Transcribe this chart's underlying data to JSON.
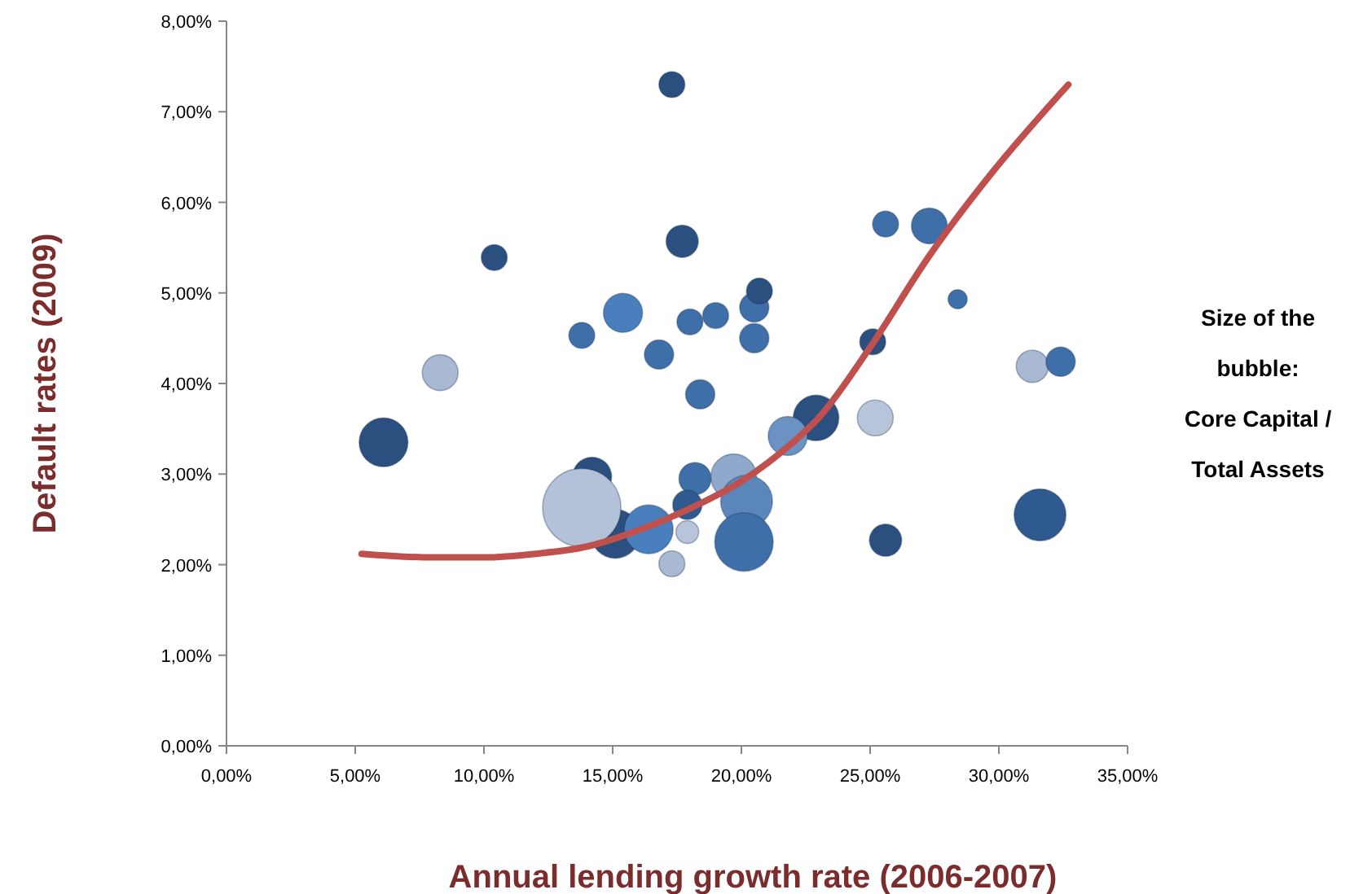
{
  "chart_data": {
    "type": "bubble",
    "xlabel": "Annual lending growth rate (2006-2007)",
    "ylabel": "Default rates (2009)",
    "annotations": [
      "Size of the\nbubble:\nCore Capital /\nTotal Assets"
    ],
    "xlim": [
      0,
      35
    ],
    "xticks": [
      {
        "value": 0,
        "label": "0,00%"
      },
      {
        "value": 5,
        "label": "5,00%"
      },
      {
        "value": 10,
        "label": "10,00%"
      },
      {
        "value": 15,
        "label": "15,00%"
      },
      {
        "value": 20,
        "label": "20,00%"
      },
      {
        "value": 25,
        "label": "25,00%"
      },
      {
        "value": 30,
        "label": "30,00%"
      },
      {
        "value": 35,
        "label": "35,00%"
      }
    ],
    "ylim": [
      0,
      8
    ],
    "yticks": [
      {
        "value": 0,
        "label": "0,00%"
      },
      {
        "value": 1,
        "label": "1,00%"
      },
      {
        "value": 2,
        "label": "2,00%"
      },
      {
        "value": 3,
        "label": "3,00%"
      },
      {
        "value": 4,
        "label": "4,00%"
      },
      {
        "value": 5,
        "label": "5,00%"
      },
      {
        "value": 6,
        "label": "6,00%"
      },
      {
        "value": 7,
        "label": "7,00%"
      },
      {
        "value": 8,
        "label": "8,00%"
      }
    ],
    "grid": false,
    "series": [
      {
        "x": [
          17.3,
          10.4,
          17.7,
          8.3,
          13.8,
          15.4,
          16.8,
          18.0,
          19.0,
          20.5,
          20.7,
          20.5,
          18.4,
          6.1,
          25.6,
          27.3,
          28.4,
          25.1,
          31.3,
          32.4,
          25.2,
          22.9,
          21.8,
          25.6,
          31.6,
          14.2,
          15.1,
          13.8,
          16.4,
          18.2,
          17.9,
          17.9,
          17.3,
          19.7,
          20.2,
          20.1
        ],
        "values": [
          7.3,
          5.39,
          5.57,
          4.12,
          4.53,
          4.78,
          4.32,
          4.68,
          4.75,
          4.84,
          5.02,
          4.5,
          3.88,
          3.35,
          5.76,
          5.74,
          4.93,
          4.46,
          4.19,
          4.24,
          3.62,
          3.62,
          3.42,
          2.27,
          2.55,
          2.97,
          2.34,
          2.63,
          2.39,
          2.95,
          2.66,
          2.36,
          2.01,
          2.97,
          2.7,
          2.25
        ],
        "sizes": [
          0.11,
          0.11,
          0.17,
          0.21,
          0.11,
          0.25,
          0.14,
          0.11,
          0.11,
          0.14,
          0.11,
          0.14,
          0.14,
          0.39,
          0.11,
          0.21,
          0.06,
          0.11,
          0.17,
          0.14,
          0.21,
          0.34,
          0.25,
          0.17,
          0.44,
          0.25,
          0.39,
          1,
          0.39,
          0.17,
          0.14,
          0.085,
          0.11,
          0.34,
          0.44,
          0.56
        ],
        "colors": [
          "#2b4f7e",
          "#2b4f7e",
          "#2b4f7e",
          "#a9b9d2",
          "#3f6fa8",
          "#4a7fbd",
          "#3f6fa8",
          "#3f6fa8",
          "#3f6fa8",
          "#3f6fa8",
          "#2b4f7e",
          "#3f6fa8",
          "#3f6fa8",
          "#2b4f7e",
          "#3f6fa8",
          "#3f6fa8",
          "#3f6fa8",
          "#2b4f7e",
          "#a9b9d2",
          "#3f6fa8",
          "#b7c4da",
          "#2b4f7e",
          "#6a93c4",
          "#2b4f7e",
          "#2f5a8f",
          "#2b4f7e",
          "#2b4f7e",
          "#b3c1d9",
          "#4a7fbd",
          "#3f6fa8",
          "#2f5a8f",
          "#b7c4da",
          "#a9b9d2",
          "#8fa8cc",
          "#5b86ba",
          "#3f6fa8"
        ]
      },
      {
        "type": "line",
        "color": "#c0504d",
        "x": [
          5.25,
          8,
          10,
          12,
          14,
          16,
          18,
          20,
          22,
          23,
          25,
          27.3,
          29.8,
          32.7
        ],
        "values": [
          2.12,
          2.08,
          2.08,
          2.12,
          2.2,
          2.38,
          2.62,
          2.92,
          3.35,
          3.62,
          4.4,
          5.41,
          6.35,
          7.3
        ]
      }
    ]
  }
}
